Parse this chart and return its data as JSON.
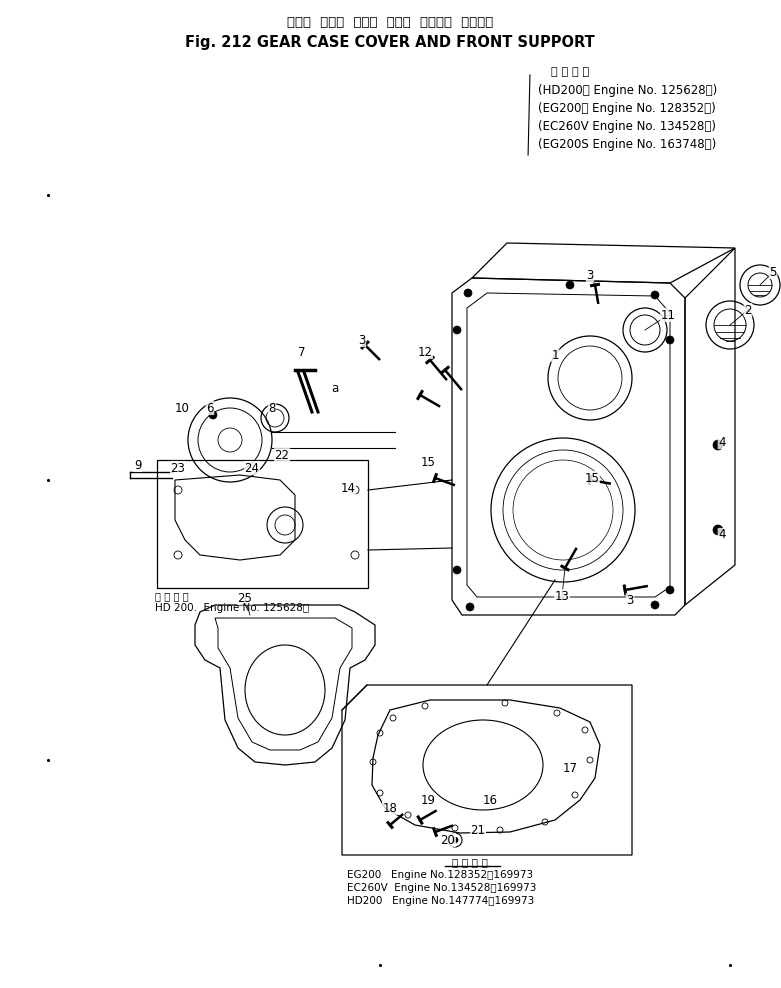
{
  "title_japanese": "ギヤー  ケース  カバー  および  フロント  サポート",
  "title_english": "Fig. 212 GEAR CASE COVER AND FRONT SUPPORT",
  "applicable_header": "適 用 号 機",
  "applicable_models": [
    "(HD200　 Engine No. 125628～)",
    "(EG200　 Engine No. 128352～)",
    "(EC260V Engine No. 134528～)",
    "(EG200S Engine No. 163748～)"
  ],
  "hd200_note": "適 用 号 機",
  "hd200_note2": "HD 200.  Engine No. 125628～",
  "bottom_note_header": "適 用 号 機",
  "bottom_notes": [
    "EG200   Engine No.128352～169973",
    "EC260V  Engine No.134528～169973",
    "HD200   Engine No.147774～169973"
  ],
  "bg_color": "#ffffff",
  "fg_color": "#000000"
}
